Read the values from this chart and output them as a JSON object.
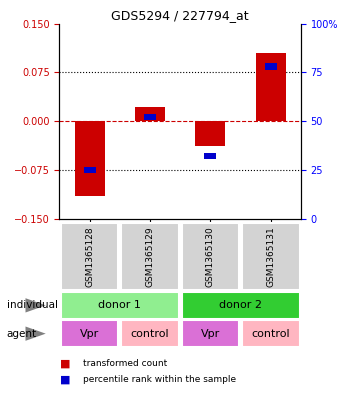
{
  "title": "GDS5294 / 227794_at",
  "samples": [
    "GSM1365128",
    "GSM1365129",
    "GSM1365130",
    "GSM1365131"
  ],
  "red_values": [
    -0.115,
    0.022,
    -0.038,
    0.105
  ],
  "blue_values_pct": [
    25,
    52,
    32,
    78
  ],
  "ylim_left": [
    -0.15,
    0.15
  ],
  "ylim_right": [
    0,
    100
  ],
  "yticks_left": [
    -0.15,
    -0.075,
    0,
    0.075,
    0.15
  ],
  "yticks_right": [
    0,
    25,
    50,
    75,
    100
  ],
  "agents": [
    "Vpr",
    "control",
    "Vpr",
    "control"
  ],
  "sample_box_color": "#D3D3D3",
  "bar_width": 0.5,
  "blue_bar_width": 0.2,
  "red_color": "#CC0000",
  "blue_color": "#0000CC",
  "zero_line_color": "#CC0000",
  "legend_red": "transformed count",
  "legend_blue": "percentile rank within the sample",
  "donor1_color": "#90EE90",
  "donor2_color": "#32CD32",
  "vpr_color": "#DA70D6",
  "control_color": "#FFB6C1",
  "agent_colors": [
    "#DA70D6",
    "#FFB6C1",
    "#DA70D6",
    "#FFB6C1"
  ]
}
